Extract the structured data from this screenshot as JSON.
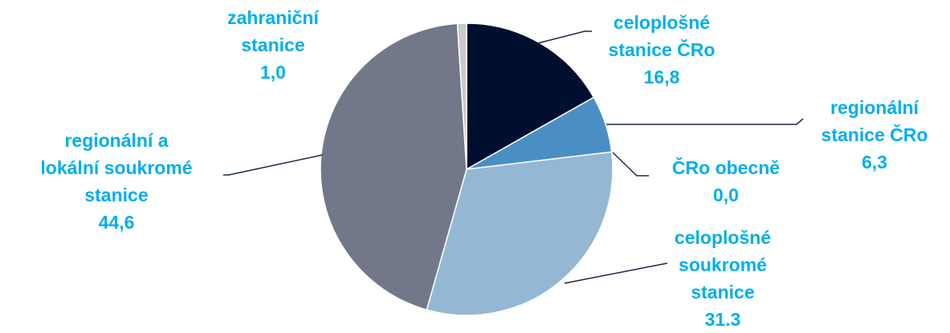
{
  "chart_data": {
    "type": "pie",
    "start_angle_deg": 0,
    "direction": "clockwise",
    "slices": [
      {
        "label_lines": [
          "celoplošné",
          "stanice ČRo"
        ],
        "value": 16.8,
        "value_label": "16,8",
        "color": "#000f30"
      },
      {
        "label_lines": [
          "regionální",
          "stanice ČRo"
        ],
        "value": 6.3,
        "value_label": "6,3",
        "color": "#4a8fc4"
      },
      {
        "label_lines": [
          "ČRo obecně"
        ],
        "value": 0.0,
        "value_label": "0,0",
        "color": "#5b9bd5"
      },
      {
        "label_lines": [
          "celoplošné",
          "soukromé",
          "stanice"
        ],
        "value": 31.3,
        "value_label": "31.3",
        "color": "#94b7d4"
      },
      {
        "label_lines": [
          "regionální a",
          "lokální soukromé",
          "stanice"
        ],
        "value": 44.6,
        "value_label": "44,6",
        "color": "#727889"
      },
      {
        "label_lines": [
          "zahraniční",
          "stanice"
        ],
        "value": 1.0,
        "value_label": "1,0",
        "color": "#c9cacd"
      }
    ],
    "label_color": "#00aeef",
    "leader_color": "#1a2a44",
    "legend": "none"
  }
}
